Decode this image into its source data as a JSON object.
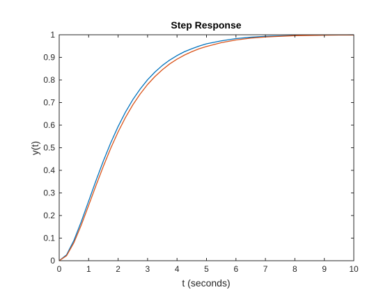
{
  "chart_data": {
    "type": "line",
    "title": "Step Response",
    "xlabel": "t (seconds)",
    "ylabel": "y(t)",
    "xlim": [
      0,
      10
    ],
    "ylim": [
      0,
      1
    ],
    "xticks": [
      "0",
      "1",
      "2",
      "3",
      "4",
      "5",
      "6",
      "7",
      "8",
      "9",
      "10"
    ],
    "yticks": [
      "0",
      "0.1",
      "0.2",
      "0.3",
      "0.4",
      "0.5",
      "0.6",
      "0.7",
      "0.8",
      "0.9",
      "1"
    ],
    "grid": false,
    "reference_line": {
      "y": 1,
      "style": "dotted",
      "color": "#000000"
    },
    "x": [
      0,
      0.25,
      0.5,
      0.75,
      1,
      1.25,
      1.5,
      1.75,
      2,
      2.25,
      2.5,
      2.75,
      3,
      3.25,
      3.5,
      3.75,
      4,
      4.25,
      4.5,
      4.75,
      5,
      5.5,
      6,
      6.5,
      7,
      7.5,
      8,
      8.5,
      9,
      9.5,
      10
    ],
    "series": [
      {
        "color": "#0072BD",
        "values": [
          0,
          0.026,
          0.09,
          0.173,
          0.264,
          0.355,
          0.442,
          0.522,
          0.594,
          0.658,
          0.713,
          0.76,
          0.801,
          0.835,
          0.864,
          0.888,
          0.908,
          0.925,
          0.938,
          0.95,
          0.96,
          0.973,
          0.983,
          0.989,
          0.993,
          0.995,
          0.997,
          0.998,
          0.999,
          0.999,
          1.0
        ]
      },
      {
        "color": "#D95319",
        "values": [
          0,
          0.022,
          0.08,
          0.158,
          0.245,
          0.333,
          0.418,
          0.498,
          0.57,
          0.634,
          0.69,
          0.738,
          0.78,
          0.815,
          0.845,
          0.871,
          0.892,
          0.91,
          0.925,
          0.938,
          0.948,
          0.965,
          0.977,
          0.985,
          0.99,
          0.993,
          0.996,
          0.997,
          0.998,
          0.999,
          0.999
        ]
      }
    ]
  }
}
